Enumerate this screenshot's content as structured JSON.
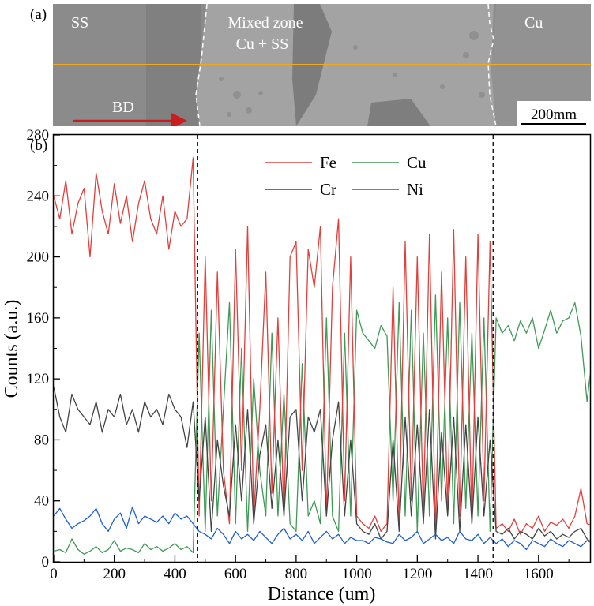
{
  "panel_a": {
    "label": "(a)",
    "region_left": "SS",
    "region_mid_1": "Mixed zone",
    "region_mid_2": "Cu + SS",
    "region_right": "Cu",
    "direction_label": "BD",
    "scale_bar": "200mm",
    "colors": {
      "scan_line": "#f0a820",
      "arrow": "#c81e1e"
    }
  },
  "chart_data": {
    "type": "line",
    "panel_label": "(b)",
    "xlabel": "Distance (um)",
    "ylabel": "Counts (a.u.)",
    "xlim": [
      0,
      1770
    ],
    "ylim": [
      0,
      280
    ],
    "xticks": [
      0,
      200,
      400,
      600,
      800,
      1000,
      1200,
      1400,
      1600
    ],
    "yticks": [
      0,
      40,
      80,
      120,
      160,
      200,
      240,
      280
    ],
    "boundaries": [
      475,
      1450
    ],
    "x_start": 0,
    "x_step": 20,
    "legend_placement": "top-center",
    "series": [
      {
        "name": "Fe",
        "color": "#e0403c",
        "values": [
          240,
          225,
          250,
          215,
          235,
          245,
          200,
          255,
          230,
          215,
          248,
          222,
          240,
          210,
          235,
          250,
          225,
          215,
          240,
          205,
          230,
          220,
          225,
          265,
          30,
          200,
          40,
          190,
          60,
          25,
          205,
          60,
          220,
          30,
          100,
          190,
          45,
          160,
          30,
          200,
          210,
          60,
          205,
          180,
          220,
          30,
          180,
          225,
          40,
          200,
          30,
          25,
          22,
          30,
          20,
          25,
          180,
          25,
          210,
          40,
          200,
          30,
          215,
          20,
          190,
          35,
          218,
          30,
          200,
          25,
          215,
          40,
          210,
          22,
          25,
          20,
          28,
          18,
          25,
          22,
          30,
          20,
          26,
          24,
          28,
          22,
          30,
          48,
          25,
          24
        ]
      },
      {
        "name": "Cu",
        "color": "#3f9a55",
        "values": [
          7,
          8,
          6,
          15,
          8,
          5,
          7,
          10,
          6,
          8,
          14,
          7,
          9,
          8,
          6,
          12,
          8,
          10,
          7,
          9,
          12,
          8,
          10,
          6,
          150,
          20,
          165,
          30,
          100,
          170,
          25,
          140,
          20,
          120,
          60,
          30,
          150,
          30,
          110,
          25,
          20,
          130,
          30,
          40,
          25,
          160,
          30,
          20,
          150,
          30,
          165,
          150,
          145,
          140,
          155,
          148,
          40,
          170,
          30,
          165,
          20,
          150,
          30,
          175,
          40,
          160,
          25,
          170,
          35,
          150,
          30,
          160,
          20,
          160,
          150,
          155,
          145,
          158,
          150,
          160,
          140,
          152,
          165,
          150,
          158,
          160,
          170,
          148,
          105,
          140
        ]
      },
      {
        "name": "Cr",
        "color": "#444444",
        "values": [
          115,
          95,
          85,
          110,
          100,
          95,
          90,
          105,
          85,
          100,
          95,
          110,
          90,
          100,
          85,
          105,
          95,
          100,
          90,
          110,
          100,
          95,
          75,
          105,
          40,
          95,
          20,
          80,
          50,
          30,
          90,
          40,
          100,
          25,
          70,
          90,
          35,
          80,
          30,
          95,
          100,
          40,
          95,
          85,
          100,
          30,
          80,
          105,
          30,
          80,
          25,
          20,
          18,
          25,
          15,
          20,
          80,
          20,
          95,
          30,
          90,
          25,
          100,
          15,
          85,
          30,
          95,
          20,
          90,
          25,
          95,
          30,
          80,
          20,
          18,
          22,
          15,
          20,
          18,
          15,
          22,
          17,
          20,
          15,
          18,
          16,
          20,
          22,
          15,
          12
        ]
      },
      {
        "name": "Ni",
        "color": "#1f5fd0",
        "values": [
          30,
          35,
          28,
          22,
          25,
          27,
          30,
          35,
          25,
          20,
          28,
          32,
          22,
          36,
          25,
          30,
          28,
          26,
          30,
          25,
          32,
          28,
          30,
          25,
          20,
          18,
          15,
          22,
          18,
          12,
          20,
          15,
          18,
          14,
          20,
          16,
          12,
          18,
          22,
          15,
          18,
          14,
          20,
          12,
          16,
          20,
          15,
          18,
          12,
          16,
          14,
          14,
          12,
          16,
          15,
          13,
          12,
          18,
          14,
          16,
          20,
          12,
          15,
          18,
          14,
          16,
          12,
          20,
          15,
          14,
          18,
          12,
          16,
          12,
          15,
          10,
          14,
          12,
          8,
          14,
          12,
          10,
          15,
          12,
          10,
          14,
          12,
          10,
          14,
          12
        ]
      }
    ]
  }
}
